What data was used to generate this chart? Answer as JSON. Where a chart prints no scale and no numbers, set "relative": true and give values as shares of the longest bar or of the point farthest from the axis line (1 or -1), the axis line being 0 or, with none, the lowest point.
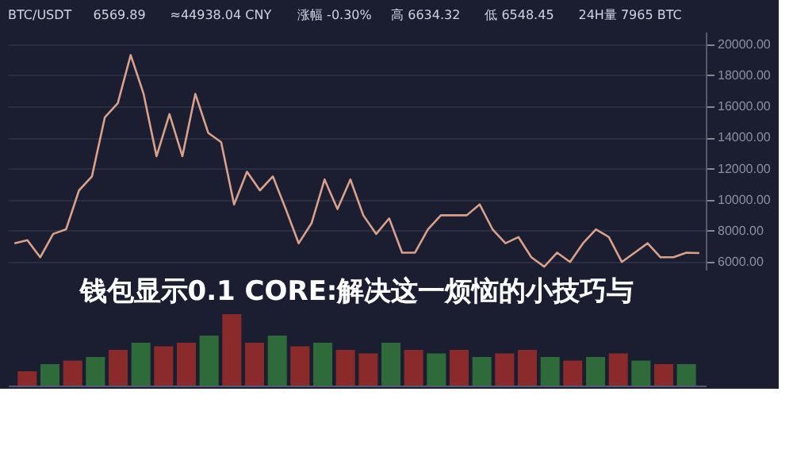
{
  "chart_data": [
    {
      "type": "line",
      "title": "钱包显示0.1 CORE:解决这一烦恼的小技巧与",
      "annotations": [
        "BTC/USDT",
        "6569.89",
        "≈44938.04 CNY",
        "涨幅 -0.30%",
        "高 6634.32",
        "低 6548.45",
        "24H量 7965 BTC"
      ],
      "categories": [
        null,
        null,
        null,
        null,
        null,
        null,
        null,
        null,
        null,
        null,
        null,
        null,
        null,
        null,
        null,
        null,
        null,
        null,
        null,
        null,
        null,
        null,
        null,
        null,
        null,
        null,
        null,
        null,
        null,
        null,
        null,
        null,
        null,
        null,
        null,
        null,
        null,
        null,
        null,
        null,
        null,
        null,
        null,
        null,
        null,
        null,
        null,
        null,
        null,
        null,
        null,
        null,
        null,
        null
      ],
      "series": [
        {
          "color": "#d9a08a",
          "values": [
            7200,
            7400,
            6300,
            7800,
            8100,
            10600,
            11500,
            15300,
            16200,
            19300,
            16800,
            12800,
            15500,
            12800,
            16800,
            14300,
            13700,
            9700,
            11800,
            10600,
            11500,
            9400,
            7200,
            8500,
            11300,
            9400,
            11300,
            9000,
            7800,
            8800,
            6600,
            6600,
            8100,
            9000,
            9000,
            9000,
            9700,
            8100,
            7200,
            7600,
            6300,
            5700,
            6600,
            6000,
            7200,
            8100,
            7600,
            6000,
            6600,
            7200,
            6300,
            6300,
            6600,
            6570
          ]
        }
      ],
      "ylim": [
        5500,
        20800
      ],
      "yticks": [
        {
          "value": 6000,
          "label": "6000.00"
        },
        {
          "value": 8000,
          "label": "8000.00"
        },
        {
          "value": 10000,
          "label": "10000.00"
        },
        {
          "value": 12000,
          "label": "12000.00"
        },
        {
          "value": 14000,
          "label": "14000.00"
        },
        {
          "value": 16000,
          "label": "16000.00"
        },
        {
          "value": 18000,
          "label": "18000.00"
        },
        {
          "value": 20000,
          "label": "20000.00"
        }
      ],
      "grid": true,
      "marker": "none",
      "line_style": "solid"
    },
    {
      "type": "bar",
      "relative": true,
      "categories": [
        null,
        null,
        null,
        null,
        null,
        null,
        null,
        null,
        null,
        null,
        null,
        null,
        null,
        null,
        null,
        null,
        null,
        null,
        null,
        null,
        null,
        null,
        null,
        null,
        null,
        null,
        null,
        null,
        null,
        null
      ],
      "values": [
        0.2,
        0.3,
        0.35,
        0.4,
        0.5,
        0.6,
        0.55,
        0.6,
        0.7,
        1,
        0.6,
        0.7,
        0.55,
        0.6,
        0.5,
        0.45,
        0.6,
        0.5,
        0.45,
        0.5,
        0.4,
        0.45,
        0.5,
        0.4,
        0.35,
        0.4,
        0.45,
        0.35,
        0.3,
        0.3
      ],
      "colors": [
        "#8a2a2a",
        "#2f6b3a",
        "#8a2a2a",
        "#2f6b3a",
        "#8a2a2a",
        "#2f6b3a",
        "#8a2a2a",
        "#8a2a2a",
        "#2f6b3a",
        "#8a2a2a",
        "#8a2a2a",
        "#2f6b3a",
        "#8a2a2a",
        "#2f6b3a",
        "#8a2a2a",
        "#8a2a2a",
        "#2f6b3a",
        "#8a2a2a",
        "#2f6b3a",
        "#8a2a2a",
        "#2f6b3a",
        "#8a2a2a",
        "#8a2a2a",
        "#2f6b3a",
        "#8a2a2a",
        "#2f6b3a",
        "#8a2a2a",
        "#2f6b3a",
        "#8a2a2a",
        "#2f6b3a"
      ]
    }
  ]
}
